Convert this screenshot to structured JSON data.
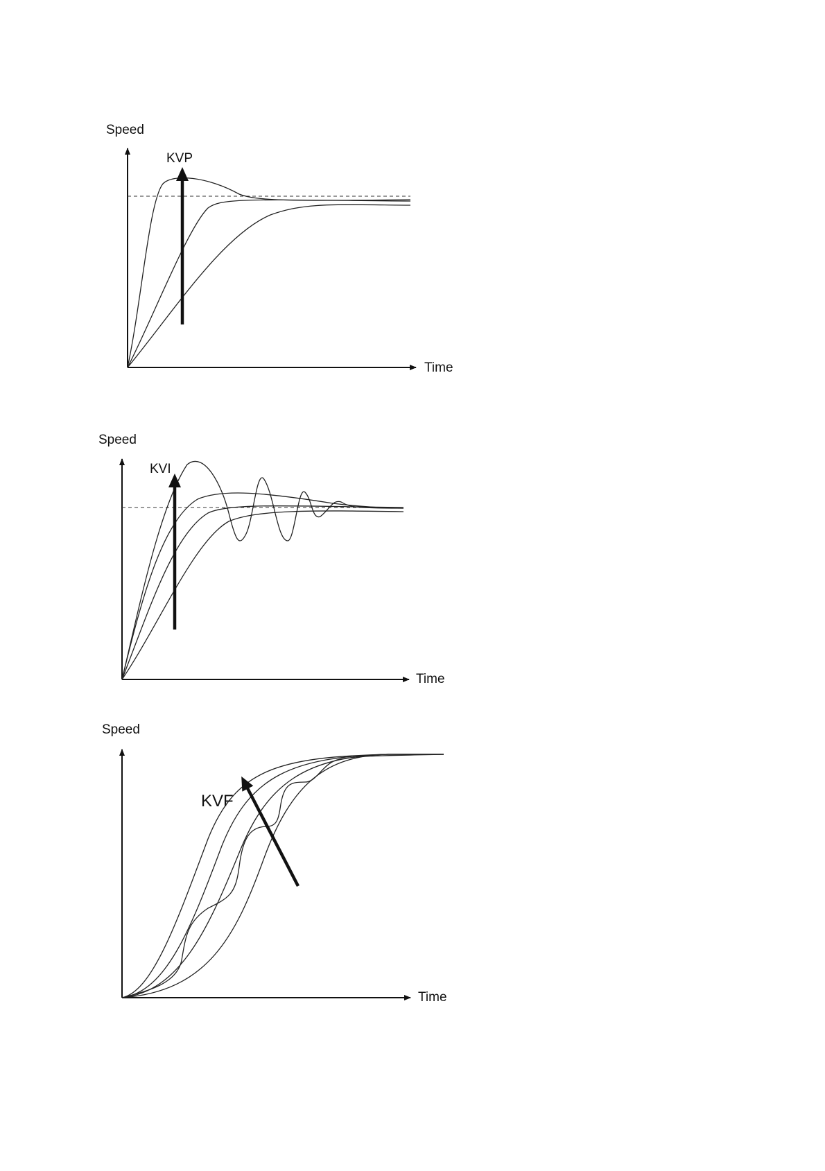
{
  "figures": [
    {
      "y_axis_label": "Speed",
      "x_axis_label": "Time",
      "arrow_label": "KVP",
      "curve_count": 3,
      "has_reference_line": true
    },
    {
      "y_axis_label": "Speed",
      "x_axis_label": "Time",
      "arrow_label": "KVI",
      "curve_count": 4,
      "has_reference_line": true
    },
    {
      "y_axis_label": "Speed",
      "x_axis_label": "Time",
      "arrow_label": "KVF",
      "curve_count": 5,
      "has_reference_line": false
    }
  ]
}
